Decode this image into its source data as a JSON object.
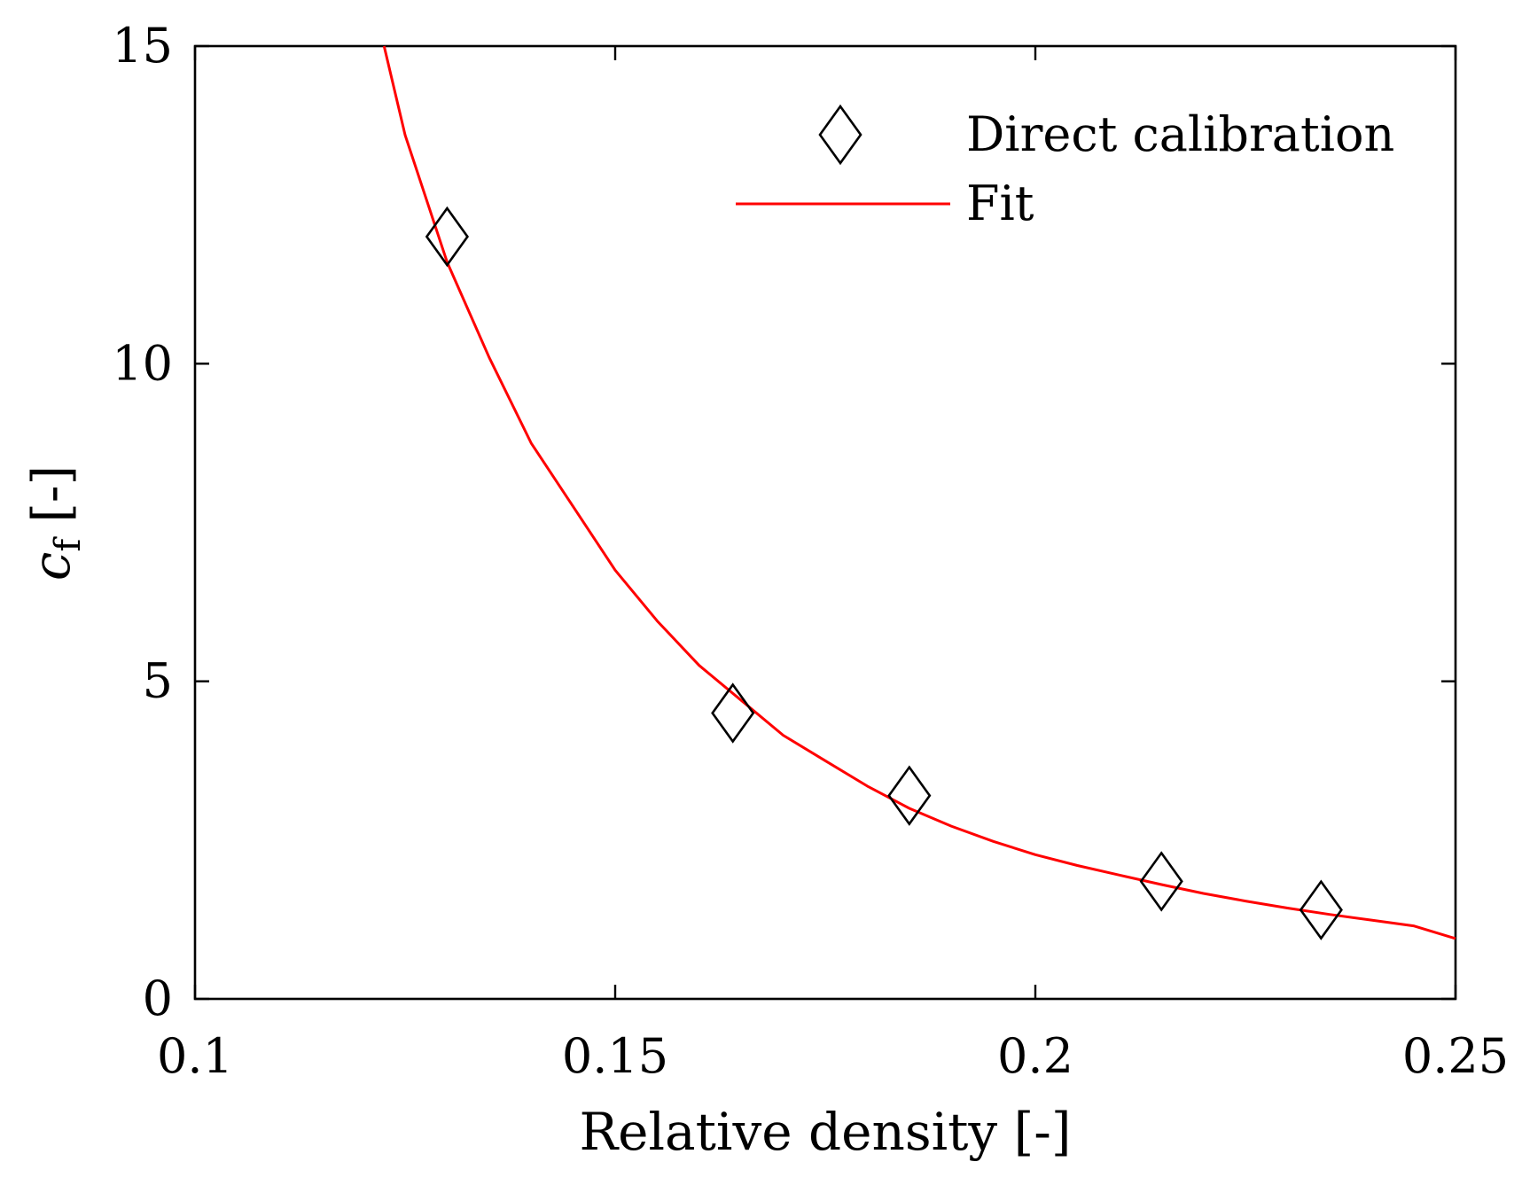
{
  "chart_data": {
    "type": "scatter",
    "title": "",
    "xlabel": "Relative density [-]",
    "ylabel": {
      "main": "c",
      "subscript": "f",
      "suffix": "[-]"
    },
    "xlim": [
      0.1,
      0.25
    ],
    "ylim": [
      0,
      15
    ],
    "xticks": [
      0.1,
      0.15,
      0.2,
      0.25
    ],
    "xtick_labels": [
      "0.1",
      "0.15",
      "0.2",
      "0.25"
    ],
    "yticks": [
      0,
      5,
      10,
      15
    ],
    "ytick_labels": [
      "0",
      "5",
      "10",
      "15"
    ],
    "grid": false,
    "legend_position": "top-right",
    "series": [
      {
        "name": "Direct calibration",
        "kind": "markers",
        "marker": "diamond",
        "color": "#000000",
        "x": [
          0.13,
          0.164,
          0.185,
          0.215,
          0.234
        ],
        "y": [
          12.0,
          4.5,
          3.2,
          1.85,
          1.4
        ]
      },
      {
        "name": "Fit",
        "kind": "line",
        "color": "#ff0000",
        "x": [
          0.1225,
          0.125,
          0.13,
          0.135,
          0.14,
          0.145,
          0.15,
          0.155,
          0.16,
          0.165,
          0.17,
          0.175,
          0.18,
          0.185,
          0.19,
          0.195,
          0.2,
          0.205,
          0.21,
          0.215,
          0.22,
          0.225,
          0.23,
          0.235,
          0.24,
          0.245,
          0.25
        ],
        "y": [
          15.0,
          13.6,
          11.6,
          10.1,
          8.75,
          7.75,
          6.75,
          5.95,
          5.25,
          4.7,
          4.15,
          3.75,
          3.35,
          3.0,
          2.72,
          2.48,
          2.27,
          2.1,
          1.95,
          1.8,
          1.66,
          1.54,
          1.43,
          1.33,
          1.24,
          1.15,
          0.95
        ]
      }
    ]
  }
}
